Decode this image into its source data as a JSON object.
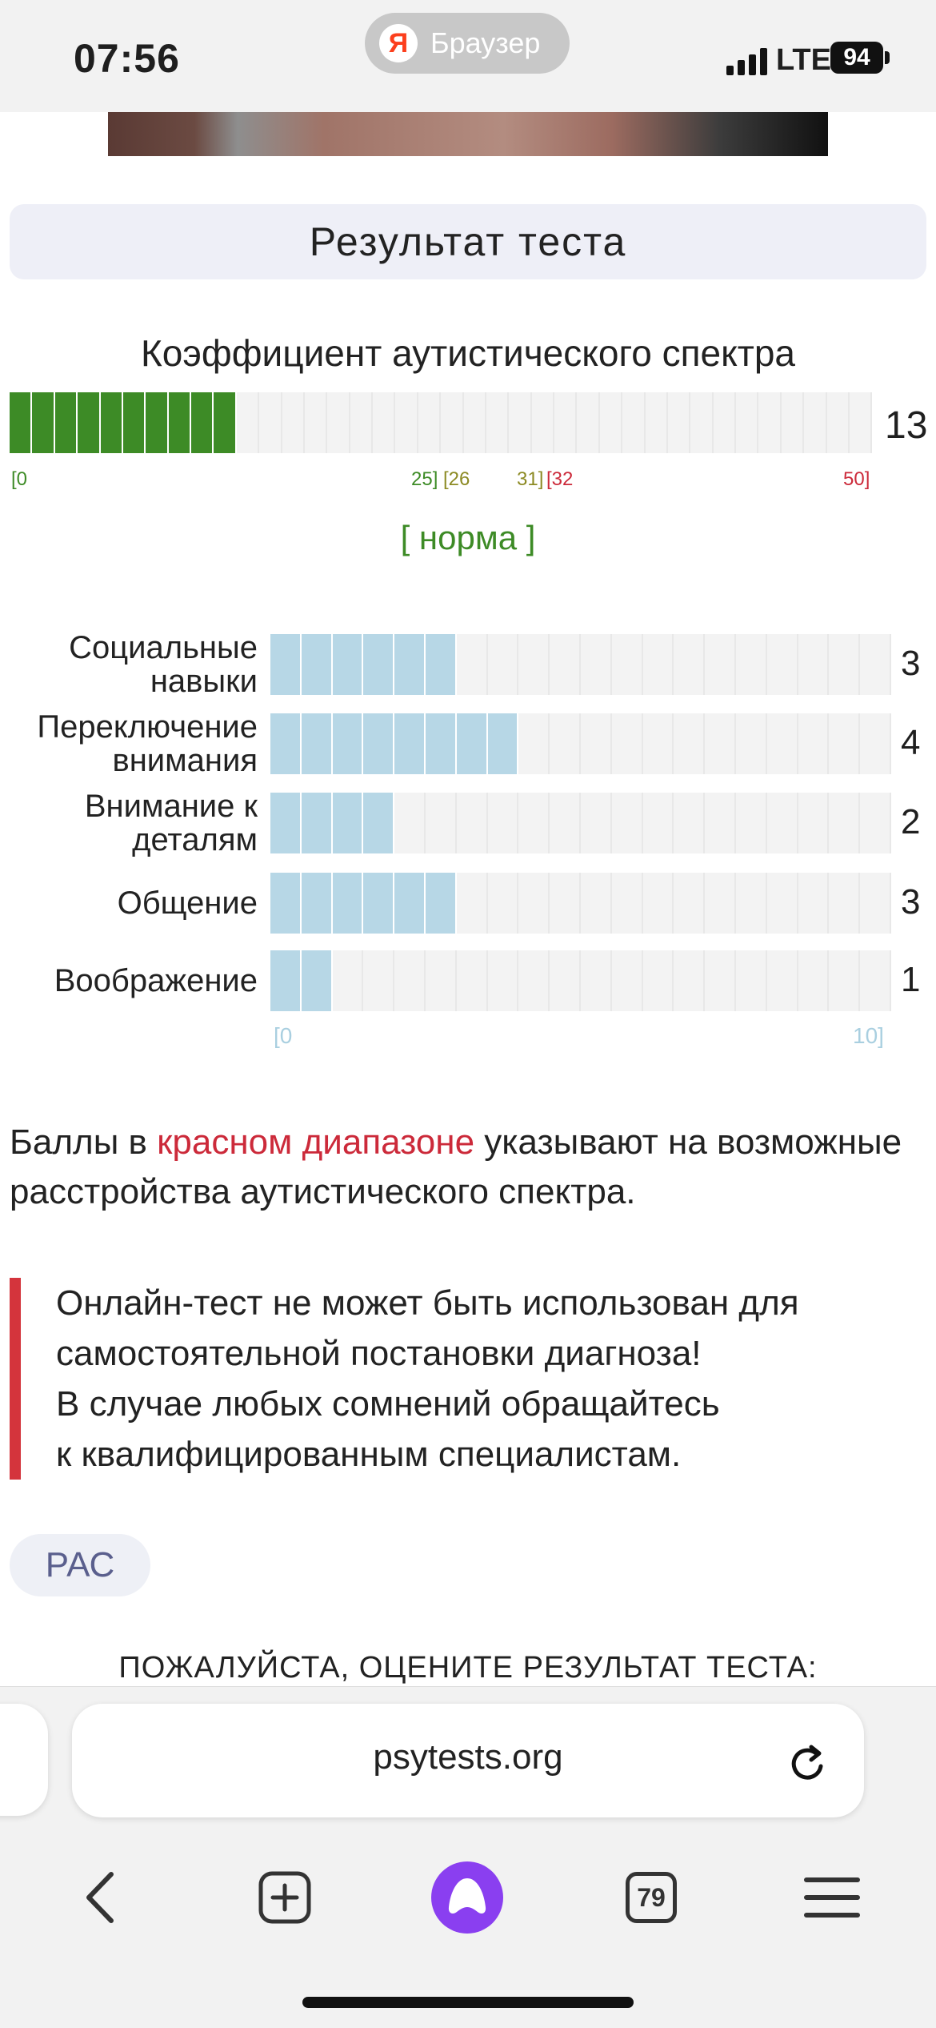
{
  "status_bar": {
    "time": "07:56",
    "browser_label": "Браузер",
    "network": "LTE",
    "battery": "94"
  },
  "result": {
    "header": "Результат теста",
    "main_scale": {
      "label": "Коэффициент аутистического спектра",
      "value": "13",
      "max": 50,
      "cells": 38,
      "filled_cells": 10,
      "colors": {
        "norm": "#3d8b26",
        "border": "#8c8a23",
        "risk": "#cc2a3a"
      },
      "range_labels": {
        "start": "[0",
        "norm_end": "25]",
        "border_start": "[26",
        "border_end": "31]",
        "risk_start": "[32",
        "end": "50]"
      }
    },
    "verdict": "[ норма ]",
    "subscales": [
      {
        "label": "Социальные навыки",
        "value": "3",
        "filled": 3
      },
      {
        "label": "Переключение внимания",
        "value": "4",
        "filled": 4
      },
      {
        "label": "Внимание к деталям",
        "value": "2",
        "filled": 2
      },
      {
        "label": "Общение",
        "value": "3",
        "filled": 3
      },
      {
        "label": "Воображение",
        "value": "1",
        "filled": 1
      }
    ],
    "subscale_max": 10,
    "subscale_cells": 20,
    "subscale_range": {
      "start": "[0",
      "end": "10]"
    },
    "subscale_color": "#b7d7e6"
  },
  "note": {
    "before": "Баллы в ",
    "highlight": "красном диапазоне",
    "after": " указывают на возможные расстройства аутистического спектра."
  },
  "warning": [
    "Онлайн-тест не может быть использован для",
    "самостоятельной постановки диагноза!",
    "В случае любых сомнений обращайтесь",
    "к квалифицированным специалистам."
  ],
  "tag": "РАС",
  "rate_title": "ПОЖАЛУЙСТА, ОЦЕНИТЕ РЕЗУЛЬТАТ ТЕСТА:",
  "browser": {
    "url": "psytests.org",
    "tabs_count": "79",
    "icons": [
      "back-arrow-icon",
      "new-tab-icon",
      "alice-icon",
      "tabs-icon",
      "menu-icon",
      "reload-icon"
    ]
  }
}
